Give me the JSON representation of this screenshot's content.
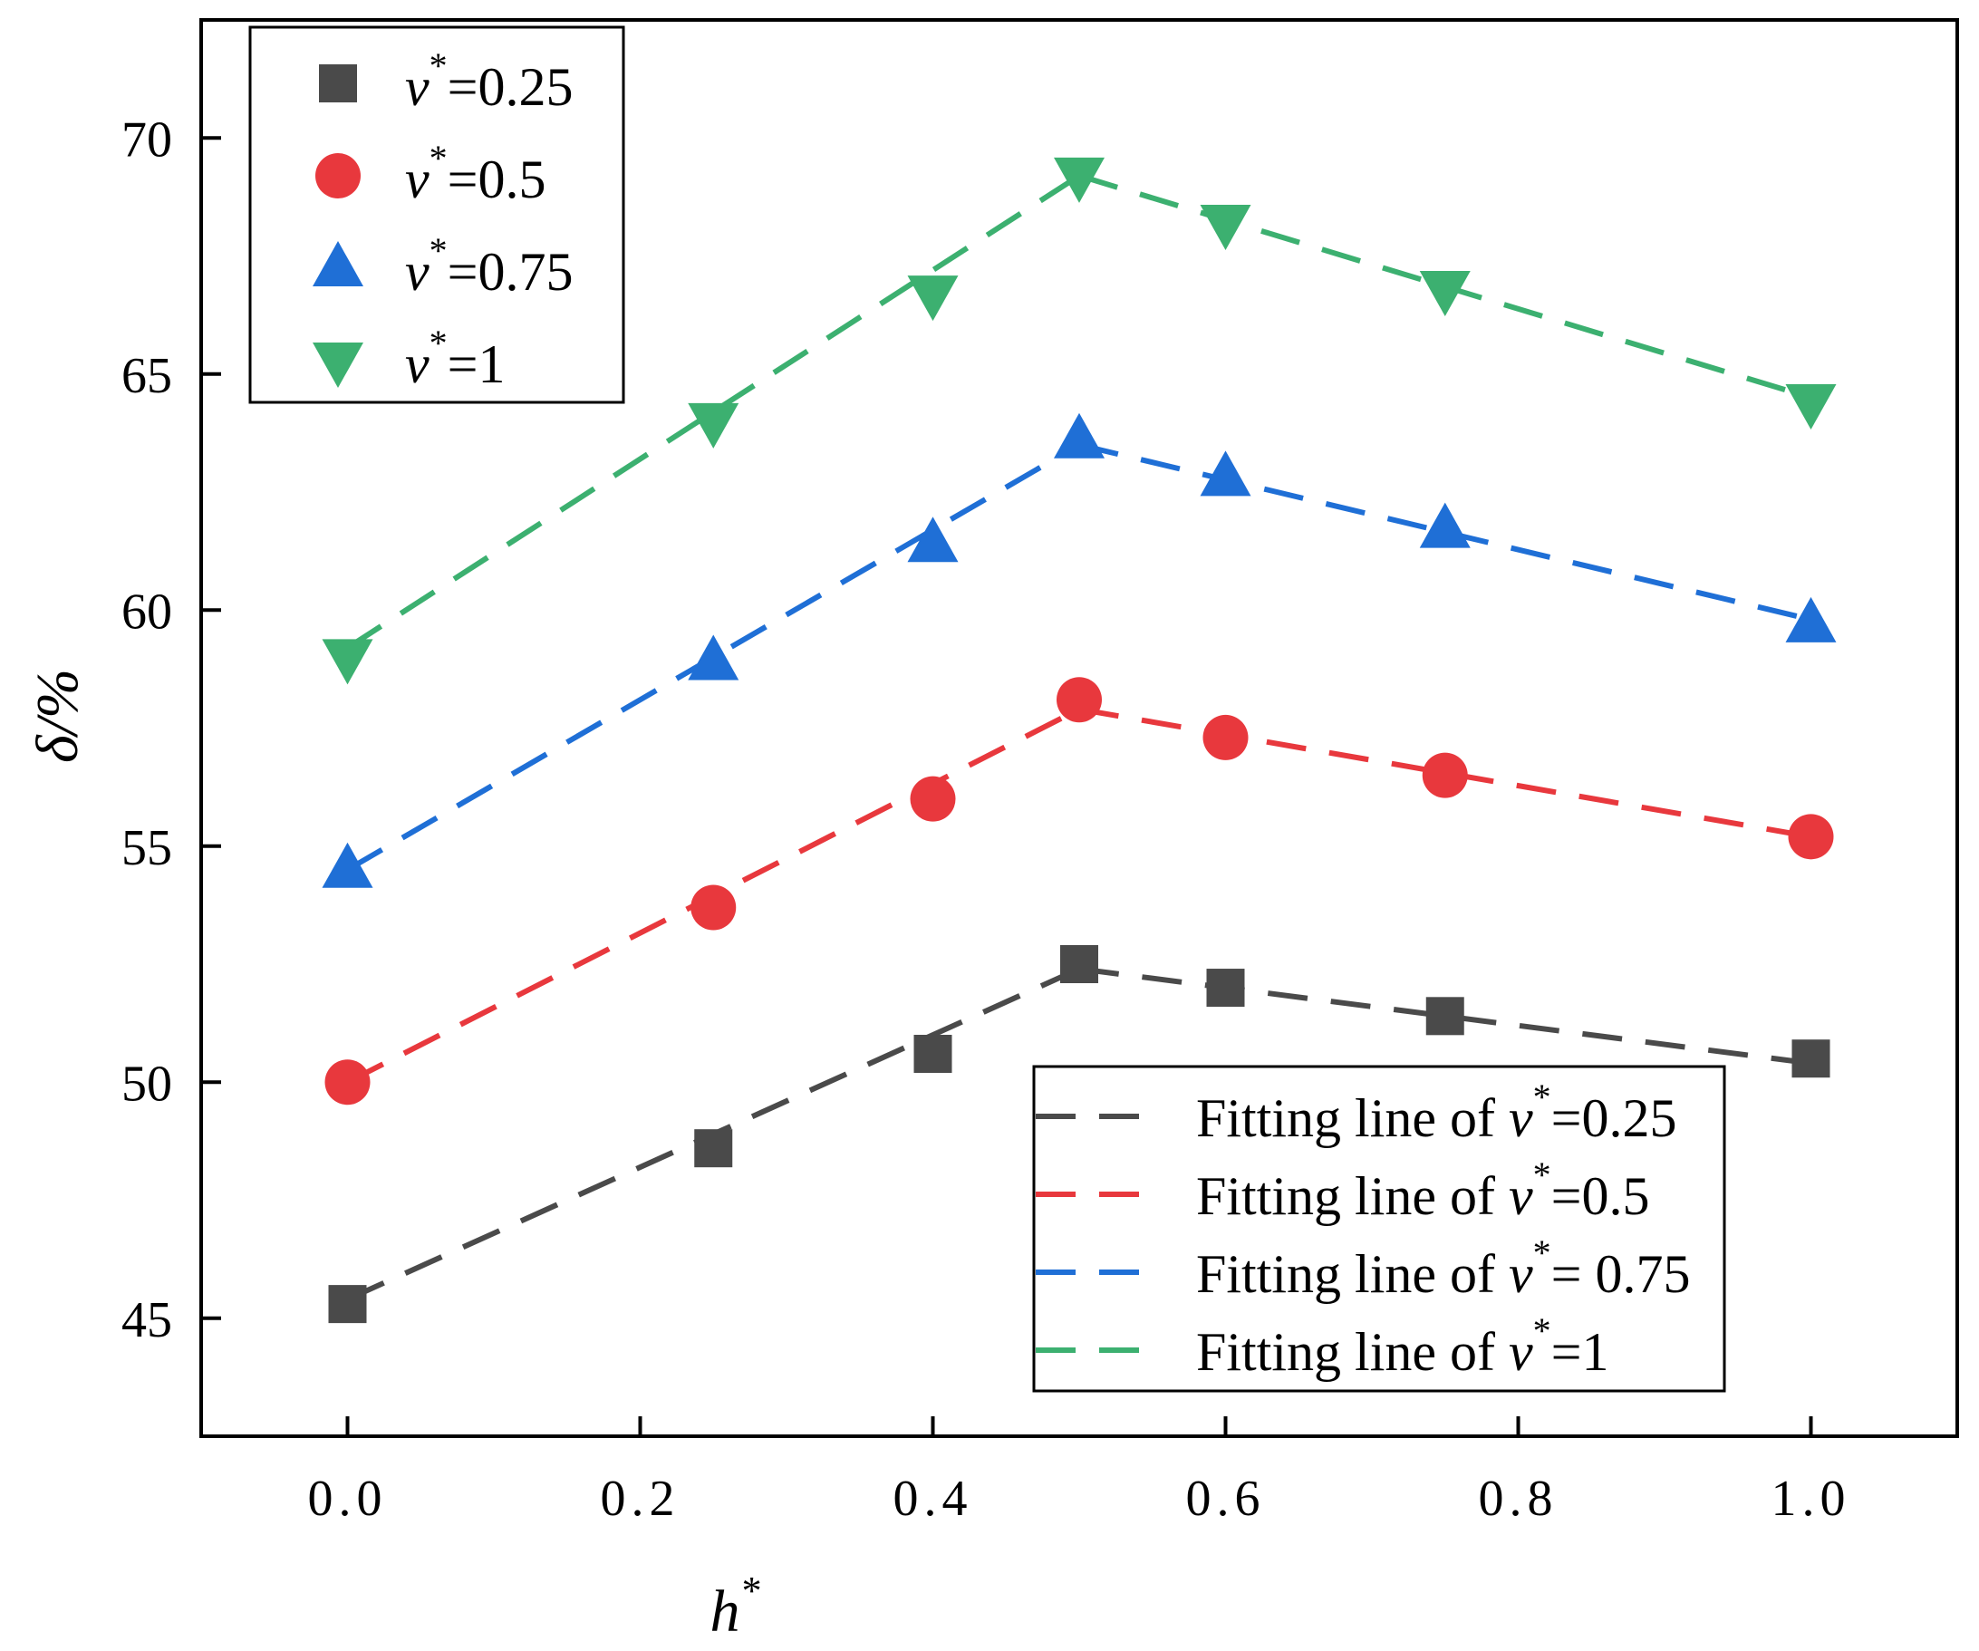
{
  "chart_data": {
    "type": "scatter",
    "xlabel": "h",
    "xlabel_superscript": "*",
    "ylabel": "δ/%",
    "xlim": [
      -0.1,
      1.1
    ],
    "ylim": [
      42.5,
      72.5
    ],
    "x_ticks": [
      0.0,
      0.2,
      0.4,
      0.6,
      0.8,
      1.0
    ],
    "x_tick_labels": [
      "0.0",
      "0.2",
      "0.4",
      "0.6",
      "0.8",
      "1.0"
    ],
    "y_ticks": [
      45,
      50,
      55,
      60,
      65,
      70
    ],
    "y_tick_labels": [
      "45",
      "50",
      "55",
      "60",
      "65",
      "70"
    ],
    "grid": false,
    "x": [
      0,
      0.25,
      0.4,
      0.5,
      0.6,
      0.75,
      1.0
    ],
    "series": [
      {
        "name": "v*=0.25",
        "label_prefix": "v",
        "label_sup": "*",
        "label_suffix": "=0.25",
        "marker": "square",
        "color": "#4a4a4a",
        "values": [
          45.3,
          48.6,
          50.6,
          52.5,
          52.0,
          51.4,
          50.5
        ]
      },
      {
        "name": "v*=0.5",
        "label_prefix": "v",
        "label_sup": "*",
        "label_suffix": "=0.5",
        "marker": "circle",
        "color": "#e8383d",
        "values": [
          50.0,
          53.7,
          56.0,
          58.1,
          57.3,
          56.5,
          55.2
        ]
      },
      {
        "name": "v*=0.75",
        "label_prefix": "v",
        "label_sup": "*",
        "label_suffix": "=0.75",
        "marker": "triangle-up",
        "color": "#1f6fd6",
        "values": [
          54.5,
          58.9,
          61.4,
          63.6,
          62.8,
          61.7,
          59.7
        ]
      },
      {
        "name": "v*=1",
        "label_prefix": "v",
        "label_sup": "*",
        "label_suffix": "=1",
        "marker": "triangle-down",
        "color": "#3cb070",
        "values": [
          59.0,
          64.0,
          66.7,
          69.2,
          68.2,
          66.8,
          64.4
        ]
      }
    ],
    "fits": [
      {
        "name": "Fitting line of v*=0.25",
        "label_prefix": "Fitting line of ",
        "label_var": "v",
        "label_sup": "*",
        "label_suffix": "=0.25",
        "color": "#4a4a4a",
        "segments": [
          [
            [
              0,
              45.4
            ],
            [
              0.5,
              52.4
            ]
          ],
          [
            [
              0.5,
              52.4
            ],
            [
              1.0,
              50.4
            ]
          ]
        ]
      },
      {
        "name": "Fitting line of v*=0.5",
        "label_prefix": "Fitting line of ",
        "label_var": "v",
        "label_sup": "*",
        "label_suffix": "=0.5",
        "color": "#e8383d",
        "segments": [
          [
            [
              0,
              50.0
            ],
            [
              0.5,
              57.9
            ]
          ],
          [
            [
              0.5,
              57.9
            ],
            [
              1.0,
              55.2
            ]
          ]
        ]
      },
      {
        "name": "Fitting line of v*= 0.75",
        "label_prefix": "Fitting line of ",
        "label_var": "v",
        "label_sup": "*",
        "label_suffix": "= 0.75",
        "color": "#1f6fd6",
        "segments": [
          [
            [
              0,
              54.5
            ],
            [
              0.5,
              63.5
            ]
          ],
          [
            [
              0.5,
              63.5
            ],
            [
              1.0,
              59.8
            ]
          ]
        ]
      },
      {
        "name": "Fitting line of v*=1",
        "label_prefix": "Fitting line of ",
        "label_var": "v",
        "label_sup": "*",
        "label_suffix": "=1",
        "color": "#3cb070",
        "segments": [
          [
            [
              0,
              59.2
            ],
            [
              0.5,
              69.2
            ]
          ],
          [
            [
              0.5,
              69.2
            ],
            [
              1.0,
              64.5
            ]
          ]
        ]
      }
    ],
    "legend_markers_position": "top-left",
    "legend_fits_position": "bottom-right"
  }
}
